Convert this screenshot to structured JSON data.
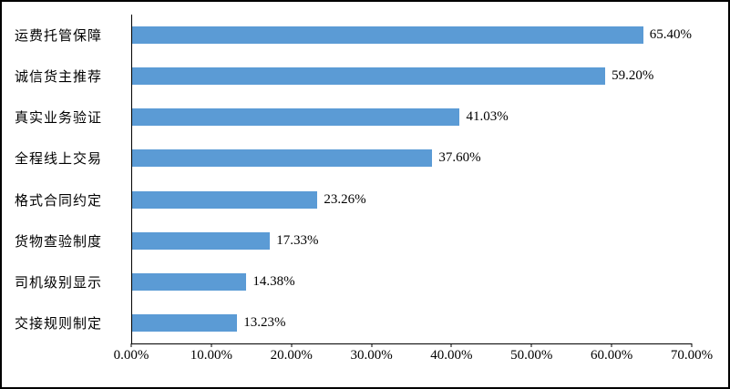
{
  "chart_data": {
    "type": "bar",
    "orientation": "horizontal",
    "title": "",
    "xlabel": "",
    "ylabel": "",
    "categories": [
      "运费托管保障",
      "诚信货主推荐",
      "真实业务验证",
      "全程线上交易",
      "格式合同约定",
      "货物查验制度",
      "司机级别显示",
      "交接规则制定"
    ],
    "values": [
      65.4,
      59.2,
      41.03,
      37.6,
      23.26,
      17.33,
      14.38,
      13.23
    ],
    "value_labels": [
      "65.40%",
      "59.20%",
      "41.03%",
      "37.60%",
      "23.26%",
      "17.33%",
      "14.38%",
      "13.23%"
    ],
    "x_ticks": [
      "0.00%",
      "10.00%",
      "20.00%",
      "30.00%",
      "40.00%",
      "50.00%",
      "60.00%",
      "70.00%"
    ],
    "xlim": [
      0,
      70
    ],
    "grid": false,
    "legend": false,
    "bar_color": "#5b9bd5",
    "axis_color": "#000000",
    "text_color": "#000000",
    "background_color": "#ffffff"
  }
}
